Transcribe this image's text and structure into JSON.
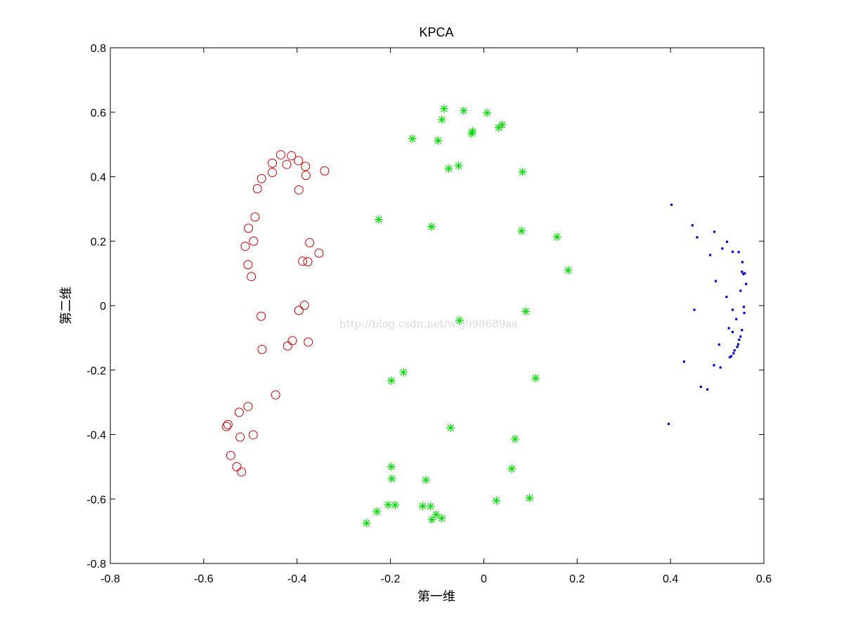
{
  "chart_data": {
    "type": "scatter",
    "title": "KPCA",
    "xlabel": "第一维",
    "ylabel": "第二维",
    "xlim": [
      -0.8,
      0.6
    ],
    "ylim": [
      -0.8,
      0.8
    ],
    "xticks": [
      -0.8,
      -0.6,
      -0.4,
      -0.2,
      0,
      0.2,
      0.4,
      0.6
    ],
    "yticks": [
      -0.8,
      -0.6,
      -0.4,
      -0.2,
      0,
      0.2,
      0.4,
      0.6,
      0.8
    ],
    "xtick_labels": [
      "-0.8",
      "-0.6",
      "-0.4",
      "-0.2",
      "0",
      "0.2",
      "0.4",
      "0.6"
    ],
    "ytick_labels": [
      "-0.8",
      "-0.6",
      "-0.4",
      "-0.2",
      "0",
      "0.2",
      "0.4",
      "0.6",
      "0.8"
    ],
    "grid": false,
    "watermark": "http://blog.csdn.net/wsj998689aa",
    "series": [
      {
        "marker": "circle",
        "color": "#cc0000",
        "points": [
          [
            -0.435,
            0.468
          ],
          [
            -0.412,
            0.465
          ],
          [
            -0.453,
            0.442
          ],
          [
            -0.397,
            0.45
          ],
          [
            -0.422,
            0.438
          ],
          [
            -0.382,
            0.432
          ],
          [
            -0.453,
            0.413
          ],
          [
            -0.341,
            0.418
          ],
          [
            -0.381,
            0.404
          ],
          [
            -0.476,
            0.394
          ],
          [
            -0.485,
            0.363
          ],
          [
            -0.396,
            0.359
          ],
          [
            -0.49,
            0.275
          ],
          [
            -0.504,
            0.24
          ],
          [
            -0.493,
            0.2
          ],
          [
            -0.511,
            0.184
          ],
          [
            -0.373,
            0.195
          ],
          [
            -0.353,
            0.163
          ],
          [
            -0.388,
            0.138
          ],
          [
            -0.377,
            0.136
          ],
          [
            -0.505,
            0.127
          ],
          [
            -0.498,
            0.09
          ],
          [
            -0.384,
            0.001
          ],
          [
            -0.396,
            -0.015
          ],
          [
            -0.477,
            -0.033
          ],
          [
            -0.41,
            -0.109
          ],
          [
            -0.376,
            -0.113
          ],
          [
            -0.42,
            -0.125
          ],
          [
            -0.475,
            -0.136
          ],
          [
            -0.446,
            -0.277
          ],
          [
            -0.505,
            -0.313
          ],
          [
            -0.524,
            -0.331
          ],
          [
            -0.548,
            -0.369
          ],
          [
            -0.551,
            -0.375
          ],
          [
            -0.494,
            -0.401
          ],
          [
            -0.522,
            -0.408
          ],
          [
            -0.542,
            -0.465
          ],
          [
            -0.529,
            -0.5
          ],
          [
            -0.519,
            -0.516
          ]
        ]
      },
      {
        "marker": "asterisk",
        "color": "#00dd00",
        "points": [
          [
            -0.085,
            0.611
          ],
          [
            -0.043,
            0.605
          ],
          [
            0.007,
            0.598
          ],
          [
            -0.09,
            0.577
          ],
          [
            0.039,
            0.561
          ],
          [
            0.032,
            0.552
          ],
          [
            -0.024,
            0.541
          ],
          [
            -0.026,
            0.534
          ],
          [
            -0.153,
            0.518
          ],
          [
            -0.098,
            0.512
          ],
          [
            -0.054,
            0.434
          ],
          [
            -0.075,
            0.425
          ],
          [
            0.083,
            0.415
          ],
          [
            -0.225,
            0.267
          ],
          [
            -0.112,
            0.245
          ],
          [
            0.081,
            0.232
          ],
          [
            0.157,
            0.213
          ],
          [
            0.181,
            0.11
          ],
          [
            0.09,
            -0.018
          ],
          [
            -0.052,
            -0.046
          ],
          [
            -0.172,
            -0.207
          ],
          [
            0.111,
            -0.225
          ],
          [
            -0.198,
            -0.233
          ],
          [
            -0.071,
            -0.379
          ],
          [
            0.067,
            -0.414
          ],
          [
            -0.198,
            -0.5
          ],
          [
            0.06,
            -0.506
          ],
          [
            -0.197,
            -0.537
          ],
          [
            -0.124,
            -0.541
          ],
          [
            0.098,
            -0.597
          ],
          [
            0.027,
            -0.605
          ],
          [
            -0.205,
            -0.618
          ],
          [
            -0.19,
            -0.619
          ],
          [
            -0.131,
            -0.622
          ],
          [
            -0.114,
            -0.623
          ],
          [
            -0.229,
            -0.639
          ],
          [
            -0.102,
            -0.648
          ],
          [
            -0.09,
            -0.66
          ],
          [
            -0.111,
            -0.664
          ],
          [
            -0.251,
            -0.675
          ]
        ]
      },
      {
        "marker": "dot",
        "color": "#0000cc",
        "points": [
          [
            0.402,
            0.313
          ],
          [
            0.447,
            0.249
          ],
          [
            0.494,
            0.229
          ],
          [
            0.457,
            0.212
          ],
          [
            0.521,
            0.198
          ],
          [
            0.511,
            0.177
          ],
          [
            0.533,
            0.167
          ],
          [
            0.546,
            0.166
          ],
          [
            0.485,
            0.157
          ],
          [
            0.554,
            0.135
          ],
          [
            0.553,
            0.105
          ],
          [
            0.559,
            0.1
          ],
          [
            0.556,
            0.098
          ],
          [
            0.497,
            0.076
          ],
          [
            0.562,
            0.067
          ],
          [
            0.55,
            0.046
          ],
          [
            0.52,
            0.027
          ],
          [
            0.557,
            -0.004
          ],
          [
            0.451,
            -0.013
          ],
          [
            0.533,
            -0.013
          ],
          [
            0.558,
            -0.023
          ],
          [
            0.541,
            -0.042
          ],
          [
            0.553,
            -0.076
          ],
          [
            0.525,
            -0.07
          ],
          [
            0.533,
            -0.082
          ],
          [
            0.55,
            -0.096
          ],
          [
            0.547,
            -0.106
          ],
          [
            0.504,
            -0.121
          ],
          [
            0.545,
            -0.12
          ],
          [
            0.543,
            -0.128
          ],
          [
            0.537,
            -0.139
          ],
          [
            0.535,
            -0.148
          ],
          [
            0.53,
            -0.157
          ],
          [
            0.527,
            -0.16
          ],
          [
            0.429,
            -0.174
          ],
          [
            0.493,
            -0.185
          ],
          [
            0.507,
            -0.192
          ],
          [
            0.465,
            -0.252
          ],
          [
            0.479,
            -0.26
          ],
          [
            0.396,
            -0.367
          ]
        ]
      }
    ]
  }
}
